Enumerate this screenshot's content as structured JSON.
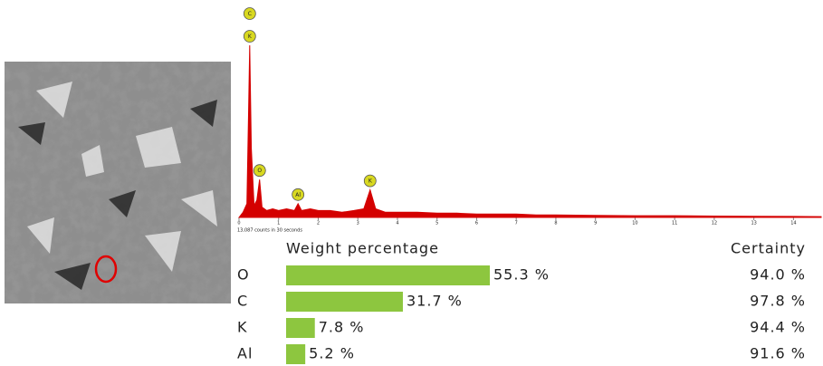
{
  "chart_data": [
    {
      "type": "spectrum",
      "caption": "13,087 counts in 30 seconds",
      "color": "#d40000",
      "x": [
        0,
        0.1,
        0.2,
        0.24,
        0.27,
        0.31,
        0.38,
        0.45,
        0.52,
        0.58,
        0.7,
        0.85,
        1.0,
        1.2,
        1.4,
        1.49,
        1.58,
        1.8,
        2.0,
        2.3,
        2.6,
        2.9,
        3.15,
        3.31,
        3.45,
        3.7,
        4.0,
        4.5,
        5.0,
        5.5,
        6.0,
        6.5,
        7.0,
        7.5,
        8.0,
        9.0,
        10.0,
        11.0,
        12.0,
        13.0,
        14.0,
        14.7
      ],
      "values": [
        0,
        3,
        8,
        60,
        100,
        40,
        7,
        10,
        22,
        6,
        4,
        5,
        4,
        5,
        4,
        8,
        4,
        5,
        4,
        4,
        3,
        4,
        5,
        16,
        5,
        3,
        3,
        3,
        2.5,
        2.5,
        2,
        2,
        2,
        1.5,
        1.5,
        1.2,
        1,
        1,
        0.8,
        0.7,
        0.6,
        0.5
      ],
      "xlim": [
        0,
        14.7
      ],
      "xticks": [
        0,
        1,
        2,
        3,
        4,
        5,
        6,
        7,
        8,
        9,
        10,
        11,
        12,
        13,
        14
      ],
      "annotations": [
        {
          "label": "C",
          "x": 0.27
        },
        {
          "label": "K",
          "x": 0.27
        },
        {
          "label": "O",
          "x": 0.52
        },
        {
          "label": "Al",
          "x": 1.49
        },
        {
          "label": "K",
          "x": 3.31
        }
      ]
    },
    {
      "type": "hbar",
      "title": "Weight percentage",
      "certainty_title": "Certainty",
      "color": "#8dc63f",
      "categories": [
        "O",
        "C",
        "K",
        "Al"
      ],
      "values": [
        55.3,
        31.7,
        7.8,
        5.2
      ],
      "value_labels": [
        "55.3 %",
        "31.7 %",
        "7.8 %",
        "5.2 %"
      ],
      "certainty": [
        "94.0 %",
        "97.8 %",
        "94.4 %",
        "91.6 %"
      ]
    }
  ]
}
